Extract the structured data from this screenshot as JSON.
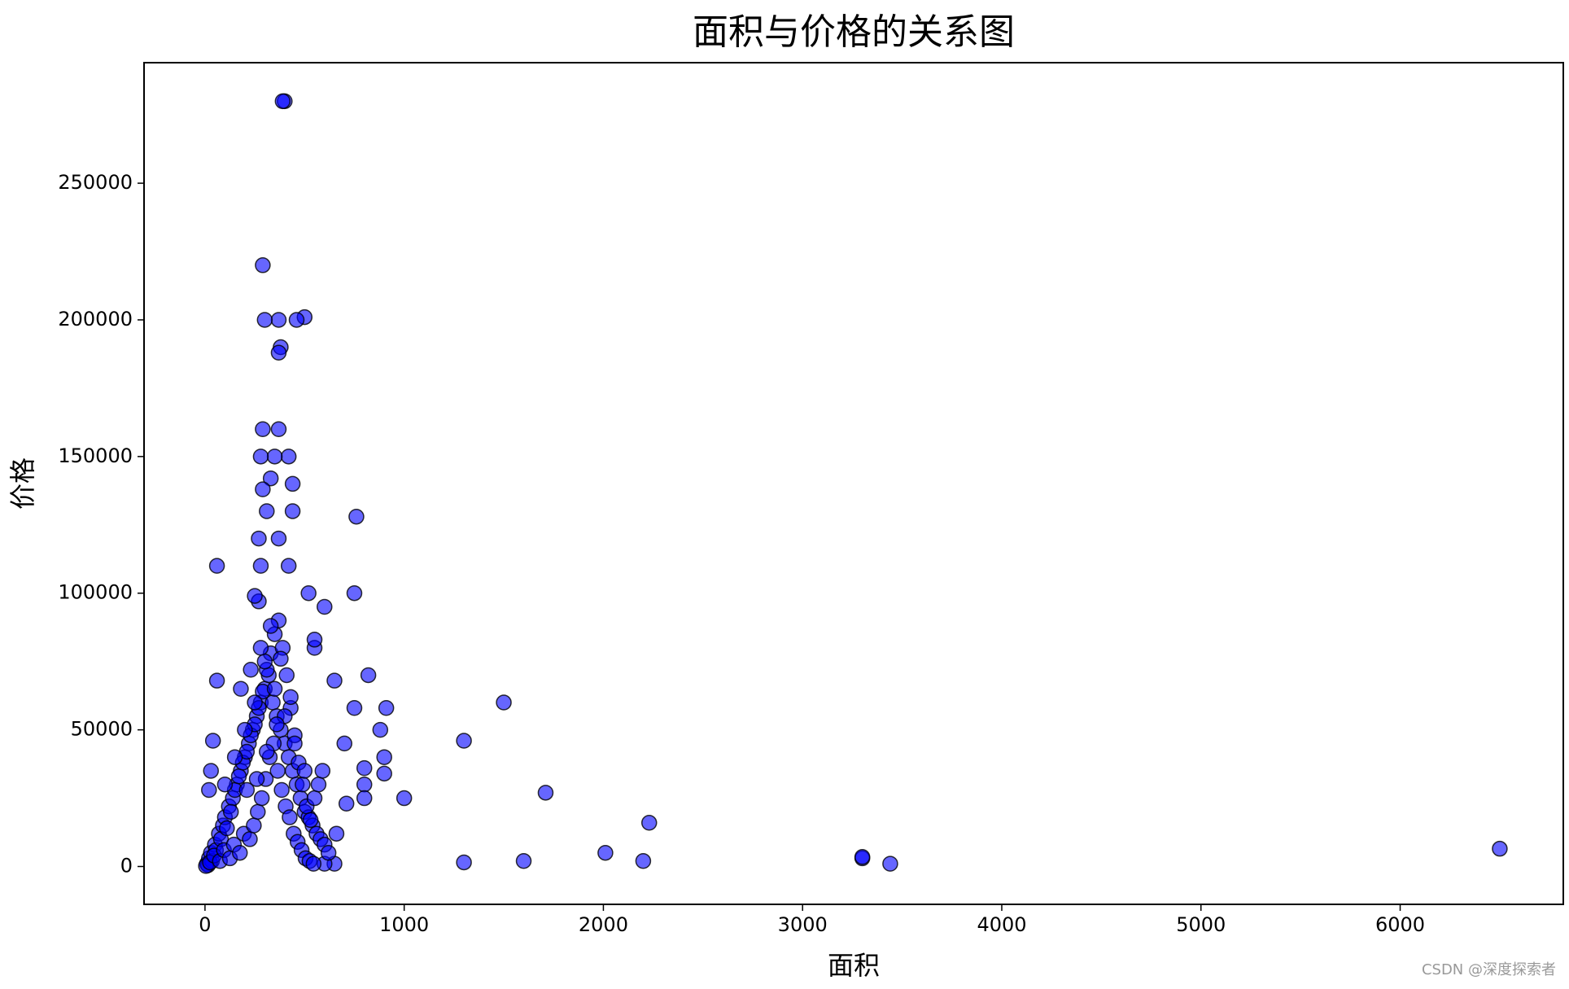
{
  "chart_data": {
    "type": "scatter",
    "title": "面积与价格的关系图",
    "x_label": "面积",
    "y_label": "价格",
    "watermark": "CSDN @深度探索者",
    "color": "#0000ff",
    "edgecolor": "#000000",
    "alpha": 0.6,
    "xlim": [
      -306,
      6819
    ],
    "ylim": [
      -13850,
      294100
    ],
    "xticks": [
      0,
      1000,
      2000,
      3000,
      4000,
      5000,
      6000
    ],
    "yticks": [
      0,
      50000,
      100000,
      150000,
      200000,
      250000
    ],
    "x": [
      6500,
      3440,
      3300,
      3300,
      2200,
      2230,
      2010,
      1710,
      1600,
      1500,
      1300,
      1300,
      1000,
      900,
      900,
      910,
      880,
      820,
      800,
      800,
      800,
      750,
      750,
      760,
      700,
      710,
      650,
      660,
      650,
      600,
      600,
      550,
      550,
      520,
      500,
      460,
      440,
      440,
      420,
      420,
      400,
      390,
      380,
      370,
      370,
      370,
      370,
      350,
      330,
      310,
      300,
      290,
      290,
      280,
      290,
      270,
      280,
      270,
      250,
      60,
      60,
      40,
      20,
      30,
      10,
      20,
      30,
      50,
      70,
      90,
      100,
      120,
      140,
      160,
      180,
      200,
      220,
      240,
      260,
      280,
      300,
      320,
      340,
      360,
      380,
      400,
      420,
      440,
      460,
      480,
      500,
      520,
      540,
      560,
      580,
      600,
      620,
      15,
      35,
      55,
      80,
      110,
      130,
      150,
      170,
      190,
      210,
      230,
      250,
      270,
      290,
      310,
      330,
      350,
      370,
      390,
      410,
      430,
      450,
      470,
      490,
      510,
      530,
      550,
      570,
      590,
      5,
      25,
      45,
      75,
      95,
      125,
      145,
      175,
      195,
      225,
      245,
      265,
      285,
      305,
      325,
      345,
      365,
      385,
      405,
      425,
      445,
      465,
      485,
      505,
      525,
      545,
      100,
      150,
      200,
      250,
      300,
      350,
      400,
      450,
      500,
      180,
      230,
      280,
      330,
      380,
      430,
      210,
      260,
      310,
      360
    ],
    "y": [
      6500,
      1000,
      3000,
      3500,
      2000,
      16000,
      5000,
      27000,
      2000,
      60000,
      46000,
      1500,
      25000,
      34000,
      40000,
      58000,
      50000,
      70000,
      30000,
      25000,
      36000,
      58000,
      100000,
      128000,
      45000,
      23000,
      68000,
      12000,
      1000,
      1000,
      95000,
      80000,
      83000,
      100000,
      201000,
      200000,
      140000,
      130000,
      150000,
      110000,
      280000,
      280000,
      190000,
      188000,
      200000,
      160000,
      120000,
      150000,
      142000,
      130000,
      200000,
      220000,
      160000,
      150000,
      138000,
      120000,
      110000,
      97000,
      99000,
      110000,
      68000,
      46000,
      28000,
      35000,
      1000,
      3000,
      5000,
      8000,
      12000,
      15000,
      18000,
      22000,
      25000,
      30000,
      35000,
      40000,
      45000,
      50000,
      55000,
      60000,
      65000,
      70000,
      60000,
      55000,
      50000,
      45000,
      40000,
      35000,
      30000,
      25000,
      20000,
      18000,
      15000,
      12000,
      10000,
      8000,
      5000,
      500,
      2000,
      6000,
      10000,
      14000,
      20000,
      28000,
      33000,
      38000,
      42000,
      48000,
      52000,
      58000,
      64000,
      72000,
      78000,
      85000,
      90000,
      80000,
      70000,
      58000,
      48000,
      38000,
      30000,
      22000,
      17000,
      25000,
      30000,
      35000,
      200,
      1500,
      4000,
      2000,
      6000,
      3000,
      8000,
      5000,
      12000,
      10000,
      15000,
      20000,
      25000,
      32000,
      40000,
      45000,
      35000,
      28000,
      22000,
      18000,
      12000,
      9000,
      6000,
      3000,
      2000,
      1000,
      30000,
      40000,
      50000,
      60000,
      75000,
      65000,
      55000,
      45000,
      35000,
      65000,
      72000,
      80000,
      88000,
      76000,
      62000,
      28000,
      32000,
      42000,
      52000
    ]
  }
}
